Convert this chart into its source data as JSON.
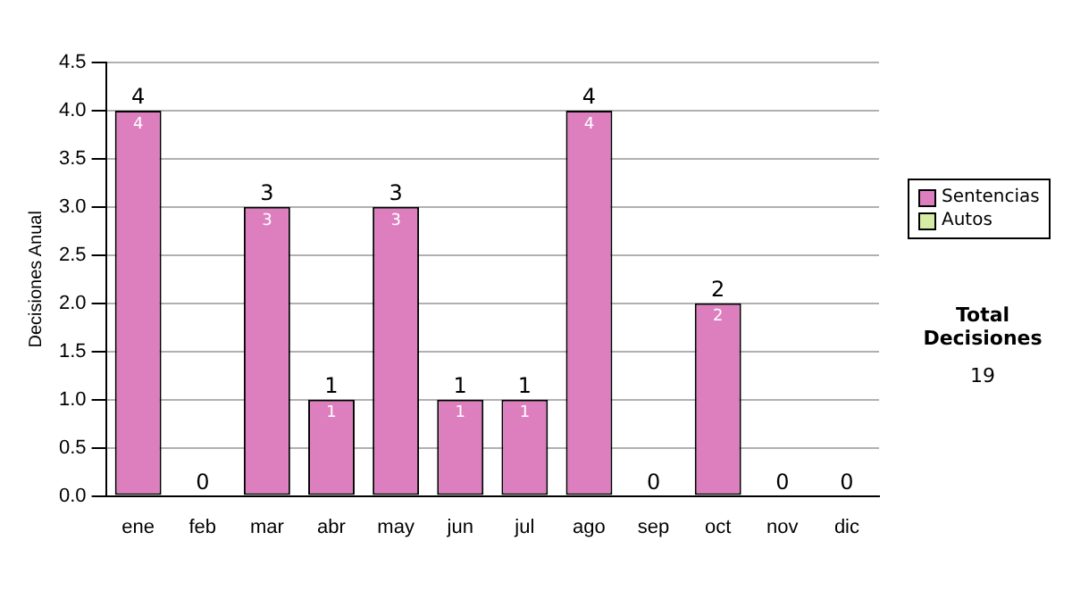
{
  "chart_data": {
    "type": "bar",
    "stacked": true,
    "ylabel": "Decisiones Anual",
    "categories": [
      "ene",
      "feb",
      "mar",
      "abr",
      "may",
      "jun",
      "jul",
      "ago",
      "sep",
      "oct",
      "nov",
      "dic"
    ],
    "series": [
      {
        "name": "Sentencias",
        "color": "#dd7fbf",
        "values": [
          4,
          0,
          3,
          1,
          3,
          1,
          1,
          4,
          0,
          2,
          0,
          0
        ],
        "value_labels": [
          "4",
          null,
          "3",
          "1",
          "3",
          "1",
          "1",
          "4",
          null,
          "2",
          null,
          null
        ]
      },
      {
        "name": "Autos",
        "color": "#d6eba4",
        "values": [
          0,
          0,
          0,
          0,
          0,
          0,
          0,
          0,
          0,
          0,
          0,
          0
        ]
      }
    ],
    "totals": [
      "4",
      "0",
      "3",
      "1",
      "3",
      "1",
      "1",
      "4",
      "0",
      "2",
      "0",
      "0"
    ],
    "ylim": [
      0,
      4.5
    ],
    "yticks": [
      {
        "value": 0,
        "label": "0.0"
      },
      {
        "value": 0.5,
        "label": "0.5"
      },
      {
        "value": 1,
        "label": "1.0"
      },
      {
        "value": 1.5,
        "label": "1.5"
      },
      {
        "value": 2,
        "label": "2.0"
      },
      {
        "value": 2.5,
        "label": "2.5"
      },
      {
        "value": 3,
        "label": "3.0"
      },
      {
        "value": 3.5,
        "label": "3.5"
      },
      {
        "value": 4,
        "label": "4.0"
      },
      {
        "value": 4.5,
        "label": "4.5"
      }
    ],
    "grid": "y",
    "legend": "right",
    "annotations": [
      "Total Decisiones",
      "19"
    ]
  }
}
